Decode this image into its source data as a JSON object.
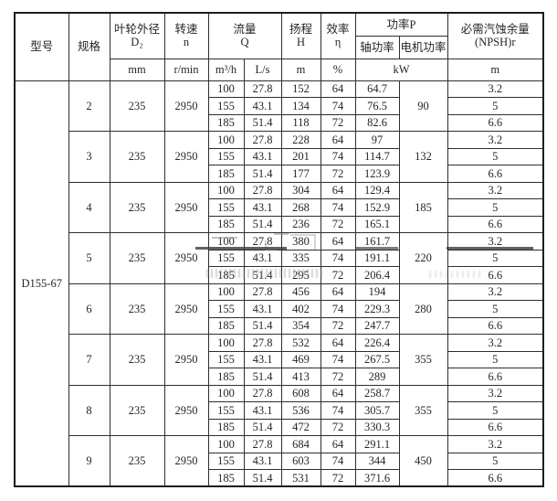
{
  "header": {
    "model": "型号",
    "spec": "规格",
    "impeller": [
      "叶轮外径",
      "D₂"
    ],
    "speed": [
      "转速",
      "n"
    ],
    "flow": [
      "流量",
      "Q"
    ],
    "head": [
      "扬程",
      "H"
    ],
    "efficiency": [
      "效率",
      "η"
    ],
    "power": "功率P",
    "shaft_power": "轴功率",
    "motor_power": "电机功率",
    "npsh": [
      "必需汽蚀余量",
      "(NPSH)r"
    ],
    "units": {
      "impeller": "mm",
      "speed": "r/min",
      "flow_m3h": "m³/h",
      "flow_ls": "L/s",
      "head": "m",
      "efficiency": "%",
      "power": "kW",
      "npsh": "m"
    }
  },
  "model_value": "D155-67",
  "row_fields": [
    "flow_m3h",
    "flow_ls",
    "head",
    "efficiency",
    "shaft_power",
    "npsh"
  ],
  "groups": [
    {
      "spec": "2",
      "d2": "235",
      "n": "2950",
      "motor": "90",
      "rows": [
        [
          "100",
          "27.8",
          "152",
          "64",
          "64.7",
          "3.2"
        ],
        [
          "155",
          "43.1",
          "134",
          "74",
          "76.5",
          "5"
        ],
        [
          "185",
          "51.4",
          "118",
          "72",
          "82.6",
          "6.6"
        ]
      ]
    },
    {
      "spec": "3",
      "d2": "235",
      "n": "2950",
      "motor": "132",
      "rows": [
        [
          "100",
          "27.8",
          "228",
          "64",
          "97",
          "3.2"
        ],
        [
          "155",
          "43.1",
          "201",
          "74",
          "114.7",
          "5"
        ],
        [
          "185",
          "51.4",
          "177",
          "72",
          "123.9",
          "6.6"
        ]
      ]
    },
    {
      "spec": "4",
      "d2": "235",
      "n": "2950",
      "motor": "185",
      "rows": [
        [
          "100",
          "27.8",
          "304",
          "64",
          "129.4",
          "3.2"
        ],
        [
          "155",
          "43.1",
          "268",
          "74",
          "152.9",
          "5"
        ],
        [
          "185",
          "51.4",
          "236",
          "72",
          "165.1",
          "6.6"
        ]
      ]
    },
    {
      "spec": "5",
      "d2": "235",
      "n": "2950",
      "motor": "220",
      "rows": [
        [
          "100",
          "27.8",
          "380",
          "64",
          "161.7",
          "3.2"
        ],
        [
          "155",
          "43.1",
          "335",
          "74",
          "191.1",
          "5"
        ],
        [
          "185",
          "51.4",
          "295",
          "72",
          "206.4",
          "6.6"
        ]
      ]
    },
    {
      "spec": "6",
      "d2": "235",
      "n": "2950",
      "motor": "280",
      "rows": [
        [
          "100",
          "27.8",
          "456",
          "64",
          "194",
          "3.2"
        ],
        [
          "155",
          "43.1",
          "402",
          "74",
          "229.3",
          "5"
        ],
        [
          "185",
          "51.4",
          "354",
          "72",
          "247.7",
          "6.6"
        ]
      ]
    },
    {
      "spec": "7",
      "d2": "235",
      "n": "2950",
      "motor": "355",
      "rows": [
        [
          "100",
          "27.8",
          "532",
          "64",
          "226.4",
          "3.2"
        ],
        [
          "155",
          "43.1",
          "469",
          "74",
          "267.5",
          "5"
        ],
        [
          "185",
          "51.4",
          "413",
          "72",
          "289",
          "6.6"
        ]
      ]
    },
    {
      "spec": "8",
      "d2": "235",
      "n": "2950",
      "motor": "355",
      "rows": [
        [
          "100",
          "27.8",
          "608",
          "64",
          "258.7",
          "3.2"
        ],
        [
          "155",
          "43.1",
          "536",
          "74",
          "305.7",
          "5"
        ],
        [
          "185",
          "51.4",
          "472",
          "72",
          "330.3",
          "6.6"
        ]
      ]
    },
    {
      "spec": "9",
      "d2": "235",
      "n": "2950",
      "motor": "450",
      "rows": [
        [
          "100",
          "27.8",
          "684",
          "64",
          "291.1",
          "3.2"
        ],
        [
          "155",
          "43.1",
          "603",
          "74",
          "344",
          "5"
        ],
        [
          "185",
          "51.4",
          "531",
          "72",
          "371.6",
          "6.6"
        ]
      ]
    }
  ]
}
